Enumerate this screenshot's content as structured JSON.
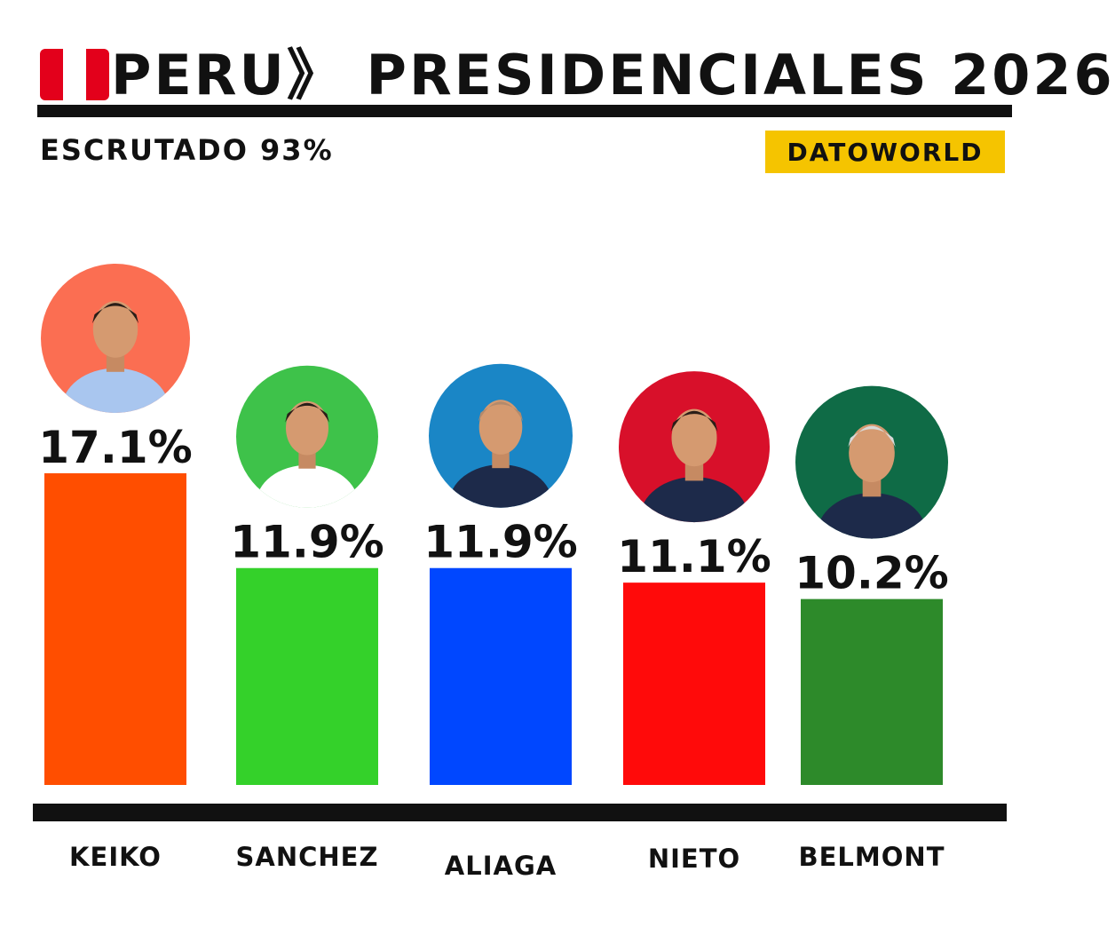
{
  "header": {
    "country": "PERU",
    "separator": "》",
    "title": "PRESIDENCIALES 2026",
    "status": "ESCRUTADO 93%",
    "brand": "DATOWORLD"
  },
  "colors": {
    "flag_red": "#e3001b",
    "brand_bg": "#f5c400",
    "text": "#111111"
  },
  "chart_data": {
    "type": "bar",
    "title": "PRESIDENCIALES 2026",
    "categories": [
      "KEIKO",
      "SANCHEZ",
      "ALIAGA",
      "NIETO",
      "BELMONT"
    ],
    "values": [
      17.1,
      11.9,
      11.9,
      11.1,
      10.2
    ],
    "value_labels": [
      "17.1%",
      "11.9%",
      "11.9%",
      "11.1%",
      "10.2%"
    ],
    "bar_colors": [
      "#ff4e00",
      "#34d12a",
      "#0047ff",
      "#ff0a0a",
      "#2d8a2a"
    ],
    "avatar_bg": [
      "#fb6e52",
      "#3ec24a",
      "#1a86c6",
      "#d8102a",
      "#0f6b46"
    ],
    "ylim": [
      0,
      17.1
    ],
    "grid": false,
    "legend": "none"
  }
}
